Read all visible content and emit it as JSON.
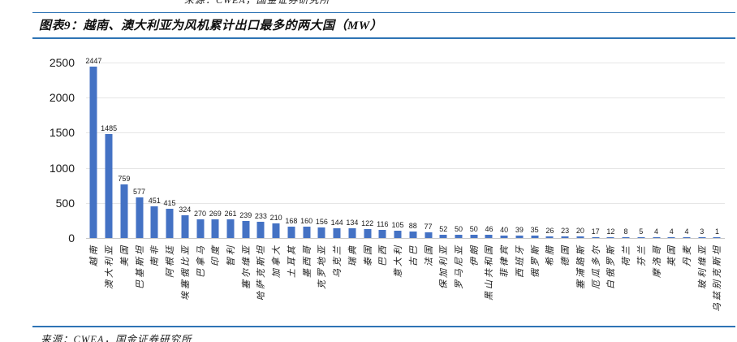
{
  "page": {
    "top_partial_source": "来源：CWEA，国金证券研究所",
    "figure_title": "图表9：越南、澳大利亚为风机累计出口最多的两大国（MW）",
    "bottom_source": "来源：CWEA，国金证券研究所"
  },
  "colors": {
    "accent_blue": "#2E74B5",
    "bar_blue": "#4472C4",
    "gridline": "#E6E6E6"
  },
  "chart_data": {
    "type": "bar",
    "title": "图表9：越南、澳大利亚为风机累计出口最多的两大国（MW）",
    "xlabel": "",
    "ylabel": "",
    "ylim": [
      0,
      2500
    ],
    "yticks": [
      0,
      500,
      1000,
      1500,
      2000,
      2500
    ],
    "grid": true,
    "legend": "none",
    "categories": [
      "越南",
      "澳大利亚",
      "美国",
      "巴基斯坦",
      "南非",
      "阿根廷",
      "埃塞俄比亚",
      "巴拿马",
      "印度",
      "智利",
      "塞尔维亚",
      "哈萨克斯坦",
      "加拿大",
      "土耳其",
      "墨西哥",
      "克罗地亚",
      "乌克兰",
      "瑞典",
      "泰国",
      "巴西",
      "意大利",
      "古巴",
      "法国",
      "保加利亚",
      "罗马尼亚",
      "伊朗",
      "黑山共和国",
      "菲律宾",
      "西班牙",
      "俄罗斯",
      "希腊",
      "德国",
      "塞浦路斯",
      "厄瓜多尔",
      "白俄罗斯",
      "荷兰",
      "芬兰",
      "摩洛哥",
      "英国",
      "丹麦",
      "玻利维亚",
      "乌兹别克斯坦"
    ],
    "values": [
      2447,
      1485,
      759,
      577,
      451,
      415,
      324,
      270,
      269,
      261,
      239,
      233,
      210,
      168,
      160,
      156,
      144,
      134,
      122,
      116,
      105,
      88,
      77,
      52,
      50,
      50,
      46,
      40,
      39,
      35,
      26,
      23,
      20,
      17,
      12,
      8,
      5,
      4,
      4,
      4,
      3,
      1
    ]
  }
}
